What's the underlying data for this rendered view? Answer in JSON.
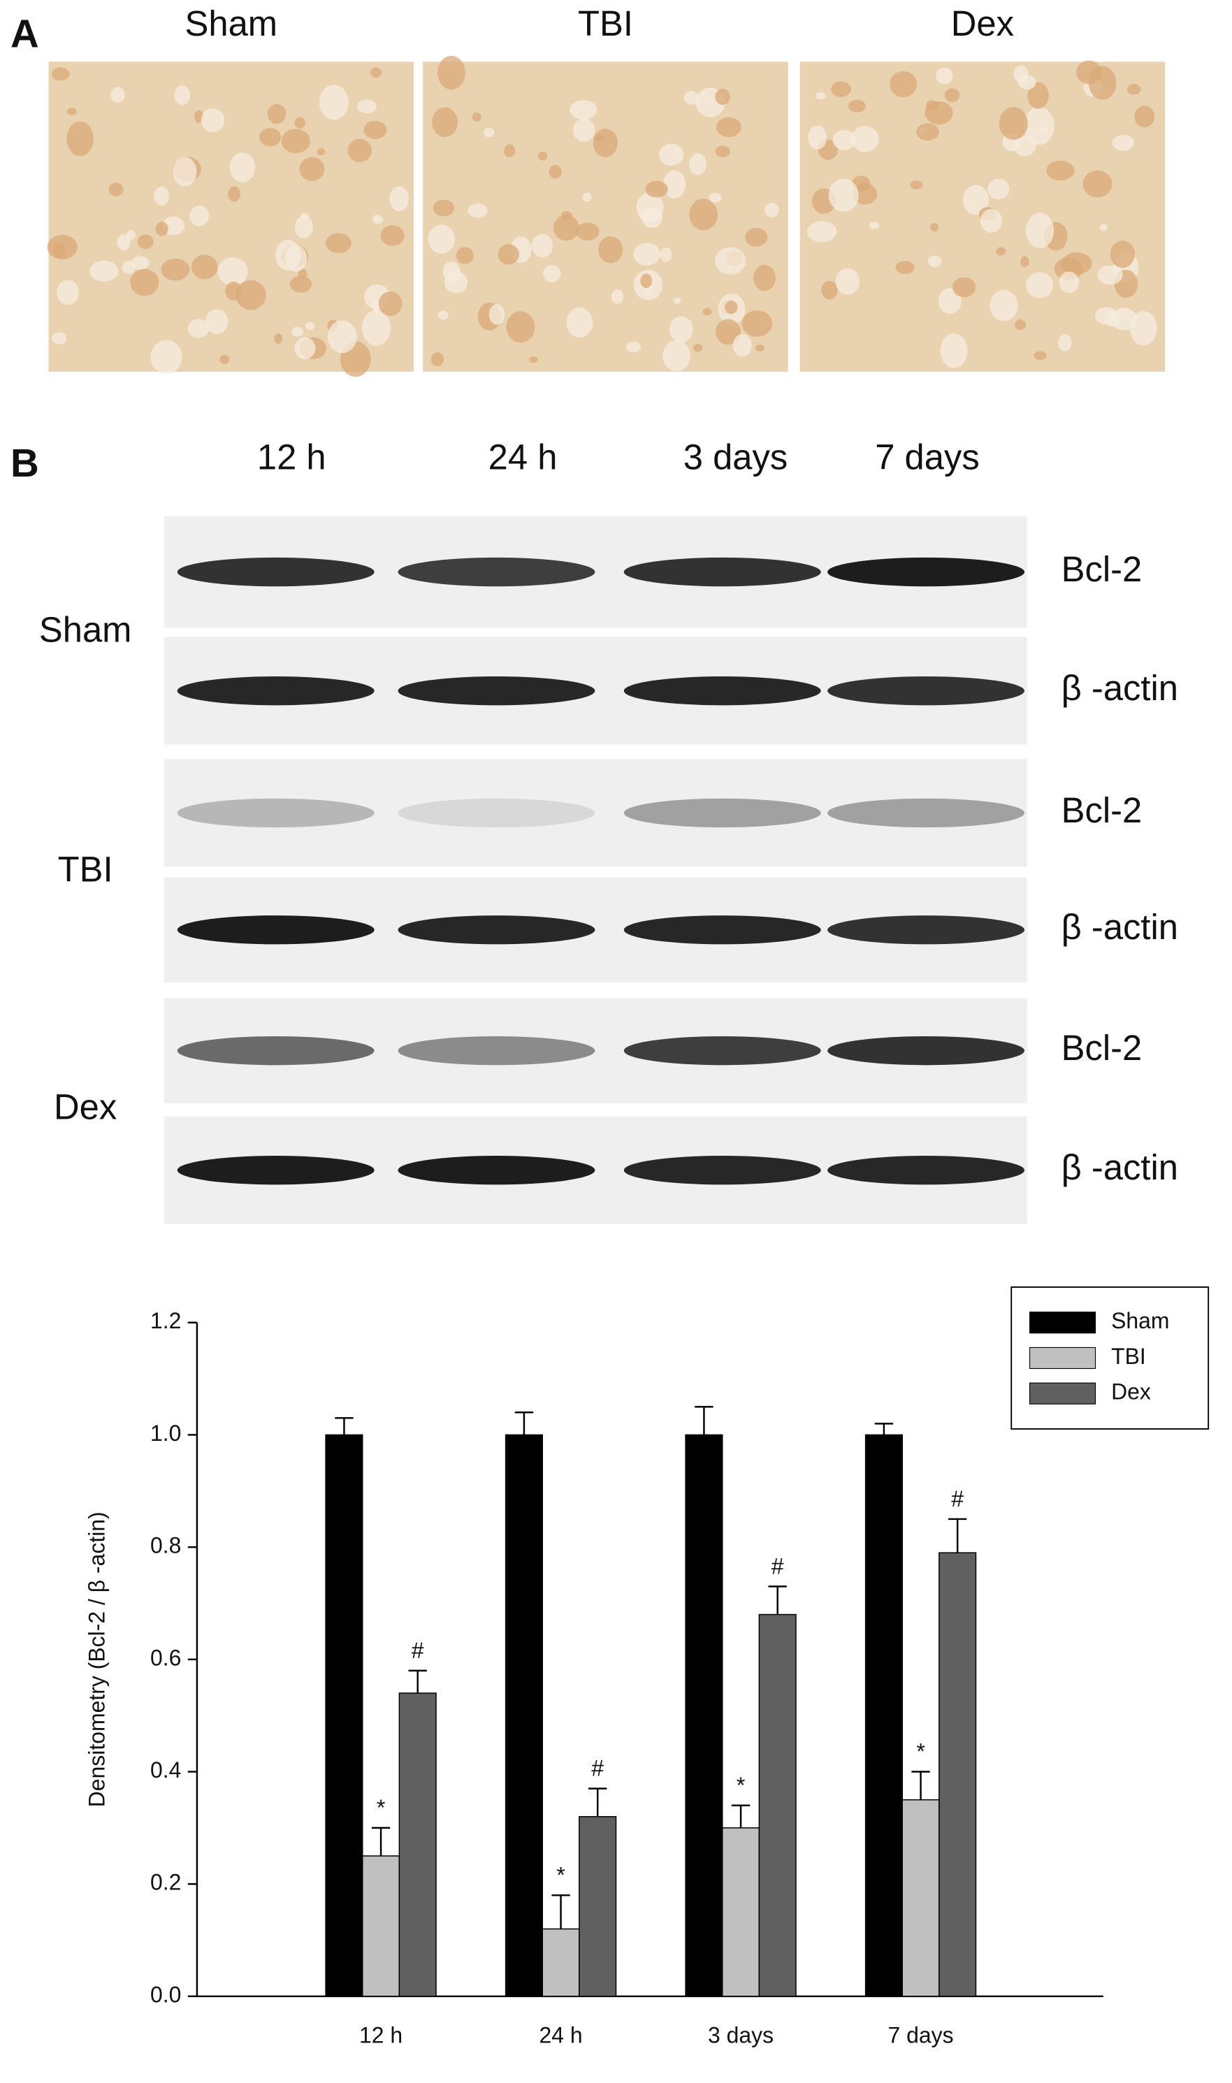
{
  "panel_a": {
    "label": "A",
    "images": [
      {
        "title": "Sham"
      },
      {
        "title": "TBI"
      },
      {
        "title": "Dex"
      }
    ]
  },
  "panel_b": {
    "label": "B",
    "timepoints": [
      "12 h",
      "24 h",
      "3 days",
      "7 days"
    ],
    "groups": [
      {
        "name": "Sham",
        "rows": [
          "Bcl-2",
          "β -actin"
        ]
      },
      {
        "name": "TBI",
        "rows": [
          "Bcl-2",
          "β -actin"
        ]
      },
      {
        "name": "Dex",
        "rows": [
          "Bcl-2",
          "β -actin"
        ]
      }
    ]
  },
  "chart_data": {
    "type": "bar",
    "y_label": "Densitometry (Bcl-2 / β -actin)",
    "categories": [
      "12 h",
      "24 h",
      "3 days",
      "7 days"
    ],
    "series": [
      {
        "name": "Sham",
        "color": "#000000",
        "values": [
          1.0,
          1.0,
          1.0,
          1.0
        ],
        "errors": [
          0.03,
          0.04,
          0.05,
          0.02
        ]
      },
      {
        "name": "TBI",
        "color": "#c0c0c0",
        "values": [
          0.25,
          0.12,
          0.3,
          0.35
        ],
        "errors": [
          0.05,
          0.06,
          0.04,
          0.05
        ],
        "significance": [
          "*",
          "*",
          "*",
          "*"
        ]
      },
      {
        "name": "Dex",
        "color": "#606060",
        "values": [
          0.54,
          0.32,
          0.68,
          0.79
        ],
        "errors": [
          0.04,
          0.05,
          0.05,
          0.06
        ],
        "significance": [
          "#",
          "#",
          "#",
          "#"
        ]
      }
    ],
    "ylim": [
      0,
      1.2
    ],
    "yticks": [
      {
        "value": 0,
        "label": "0.0"
      },
      {
        "value": 0.2,
        "label": "0.2"
      },
      {
        "value": 0.4,
        "label": "0.4"
      },
      {
        "value": 0.6,
        "label": "0.6"
      },
      {
        "value": 0.8,
        "label": "0.8"
      },
      {
        "value": 1.0,
        "label": "1.0"
      },
      {
        "value": 1.2,
        "label": "1.2"
      }
    ],
    "legend": "top-right"
  }
}
